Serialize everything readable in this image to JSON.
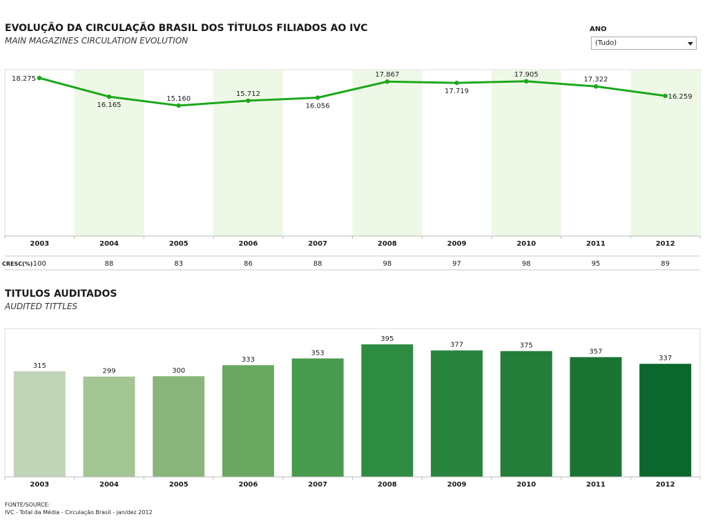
{
  "header": {
    "title": "EVOLUÇÃO DA CIRCULAÇÃO BRASIL DOS TÍTULOS FILIADOS AO IVC",
    "subtitle": "MAIN MAGAZINES CIRCULATION EVOLUTION"
  },
  "filter": {
    "label": "ANO",
    "selected": "(Tudo)"
  },
  "cresc_label": "CRESC(%)",
  "section2": {
    "title": "TITULOS AUDITADOS",
    "subtitle": "AUDITED TITTLES"
  },
  "footer": {
    "source_label": "FONTE/SOURCE:",
    "source_text": "IVC - Total da Média - Circulação Brasil - jan/dez 2012"
  },
  "colors": {
    "line": "#1aa81a",
    "band": "#eef8e6",
    "axis": "#b8b8b8"
  },
  "chart_data": [
    {
      "type": "line",
      "title": "EVOLUÇÃO DA CIRCULAÇÃO BRASIL DOS TÍTULOS FILIADOS AO IVC",
      "categories": [
        "2003",
        "2004",
        "2005",
        "2006",
        "2007",
        "2008",
        "2009",
        "2010",
        "2011",
        "2012"
      ],
      "values": [
        18.275,
        16.165,
        15.16,
        15.712,
        16.056,
        17.867,
        17.719,
        17.905,
        17.322,
        16.259
      ],
      "labels": [
        "18.275",
        "16.165",
        "15.160",
        "15.712",
        "16.056",
        "17.867",
        "17.719",
        "17.905",
        "17.322",
        "16.259"
      ],
      "ylim": [
        0,
        19
      ],
      "cresc": [
        "100",
        "88",
        "83",
        "86",
        "88",
        "98",
        "97",
        "98",
        "95",
        "89"
      ]
    },
    {
      "type": "bar",
      "title": "TITULOS AUDITADOS",
      "categories": [
        "2003",
        "2004",
        "2005",
        "2006",
        "2007",
        "2008",
        "2009",
        "2010",
        "2011",
        "2012"
      ],
      "values": [
        315,
        299,
        300,
        333,
        353,
        395,
        377,
        375,
        357,
        337
      ],
      "ylim": [
        0,
        420
      ],
      "colors": [
        "#c0d4b8",
        "#a4c594",
        "#88b67a",
        "#6aa862",
        "#479a4e",
        "#2e8c42",
        "#29843e",
        "#247d39",
        "#1b7433",
        "#0b672d"
      ]
    }
  ]
}
